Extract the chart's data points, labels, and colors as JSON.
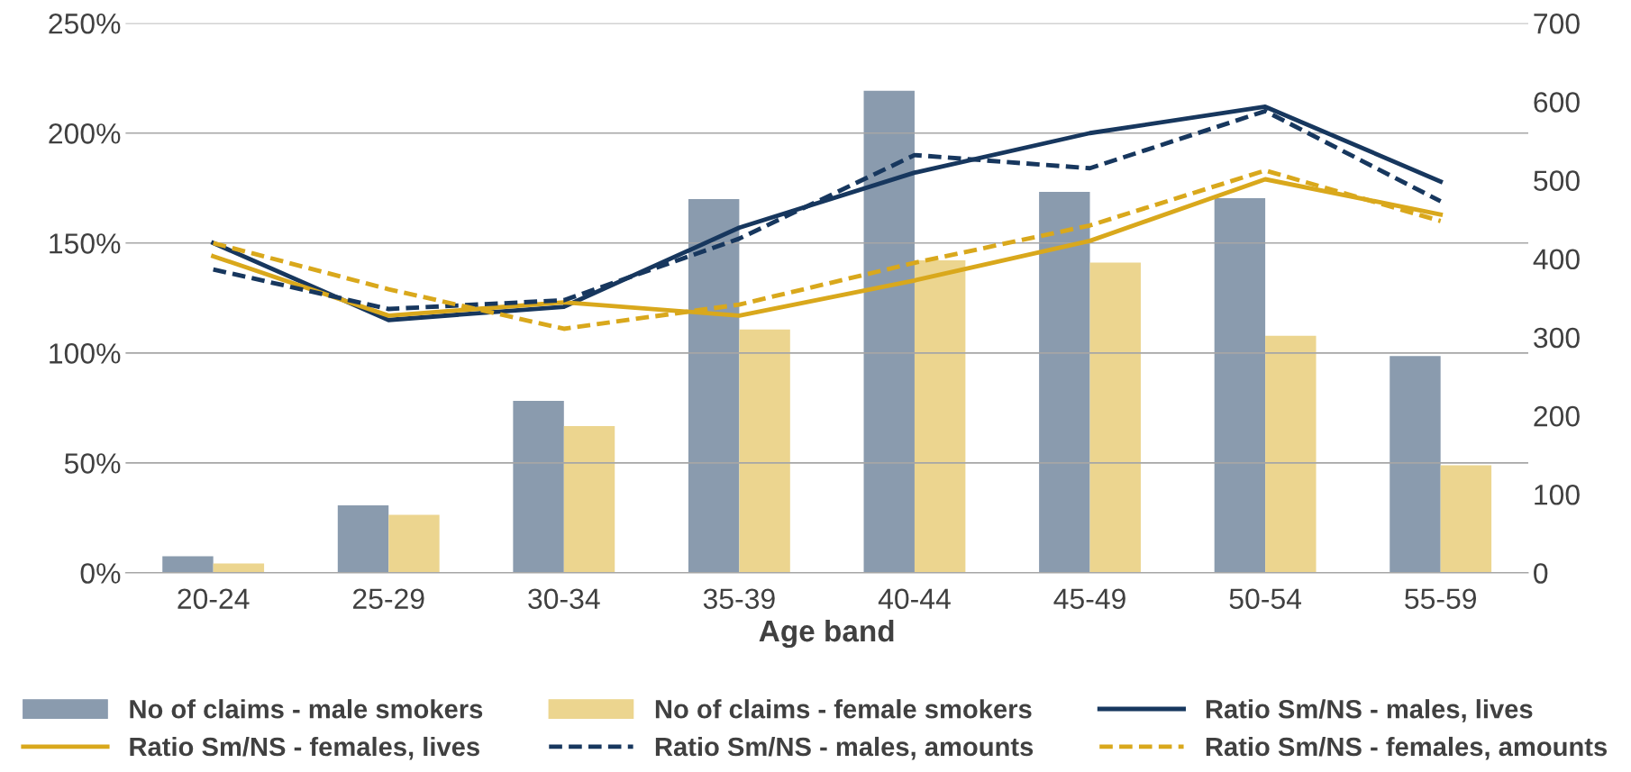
{
  "chart_data": {
    "type": "bar",
    "xlabel": "Age band",
    "categories": [
      "20-24",
      "25-29",
      "30-34",
      "35-39",
      "40-44",
      "45-49",
      "50-54",
      "55-59"
    ],
    "ylim": [
      0,
      250
    ],
    "yticks": [
      {
        "value": 0,
        "label": "0%"
      },
      {
        "value": 50,
        "label": "50%"
      },
      {
        "value": 100,
        "label": "100%"
      },
      {
        "value": 150,
        "label": "150%"
      },
      {
        "value": 200,
        "label": "200%"
      },
      {
        "value": 250,
        "label": "250%"
      }
    ],
    "y2lim": [
      0,
      700
    ],
    "y2ticks": [
      0,
      100,
      200,
      300,
      400,
      500,
      600,
      700
    ],
    "grid": "y",
    "legend": "bottom",
    "series": [
      {
        "name": "No of claims - male smokers",
        "axis": "y2",
        "color": "#8a9bae",
        "values": [
          21,
          86,
          219,
          476,
          614,
          485,
          477,
          276
        ]
      },
      {
        "name": "No of claims - female smokers",
        "axis": "y2",
        "color": "#ecd58f",
        "values": [
          12,
          74,
          187,
          310,
          398,
          395,
          302,
          137
        ]
      },
      {
        "name": "Ratio Sm/NS - males, lives",
        "type": "line",
        "color": "#17375e",
        "line_style": "solid",
        "values": [
          150,
          115,
          121,
          157,
          182,
          200,
          212,
          178
        ]
      },
      {
        "name": "Ratio Sm/NS - females, lives",
        "type": "line",
        "color": "#d9a81c",
        "line_style": "solid",
        "values": [
          144,
          117,
          123,
          117,
          133,
          151,
          179,
          163
        ]
      },
      {
        "name": "Ratio Sm/NS - males, amounts",
        "type": "line",
        "color": "#17375e",
        "line_style": "dashed",
        "values": [
          138,
          120,
          124,
          152,
          190,
          184,
          210,
          169
        ]
      },
      {
        "name": "Ratio Sm/NS - females, amounts",
        "type": "line",
        "color": "#d9a81c",
        "line_style": "dashed",
        "values": [
          150,
          129,
          111,
          122,
          141,
          158,
          183,
          160
        ]
      }
    ]
  }
}
